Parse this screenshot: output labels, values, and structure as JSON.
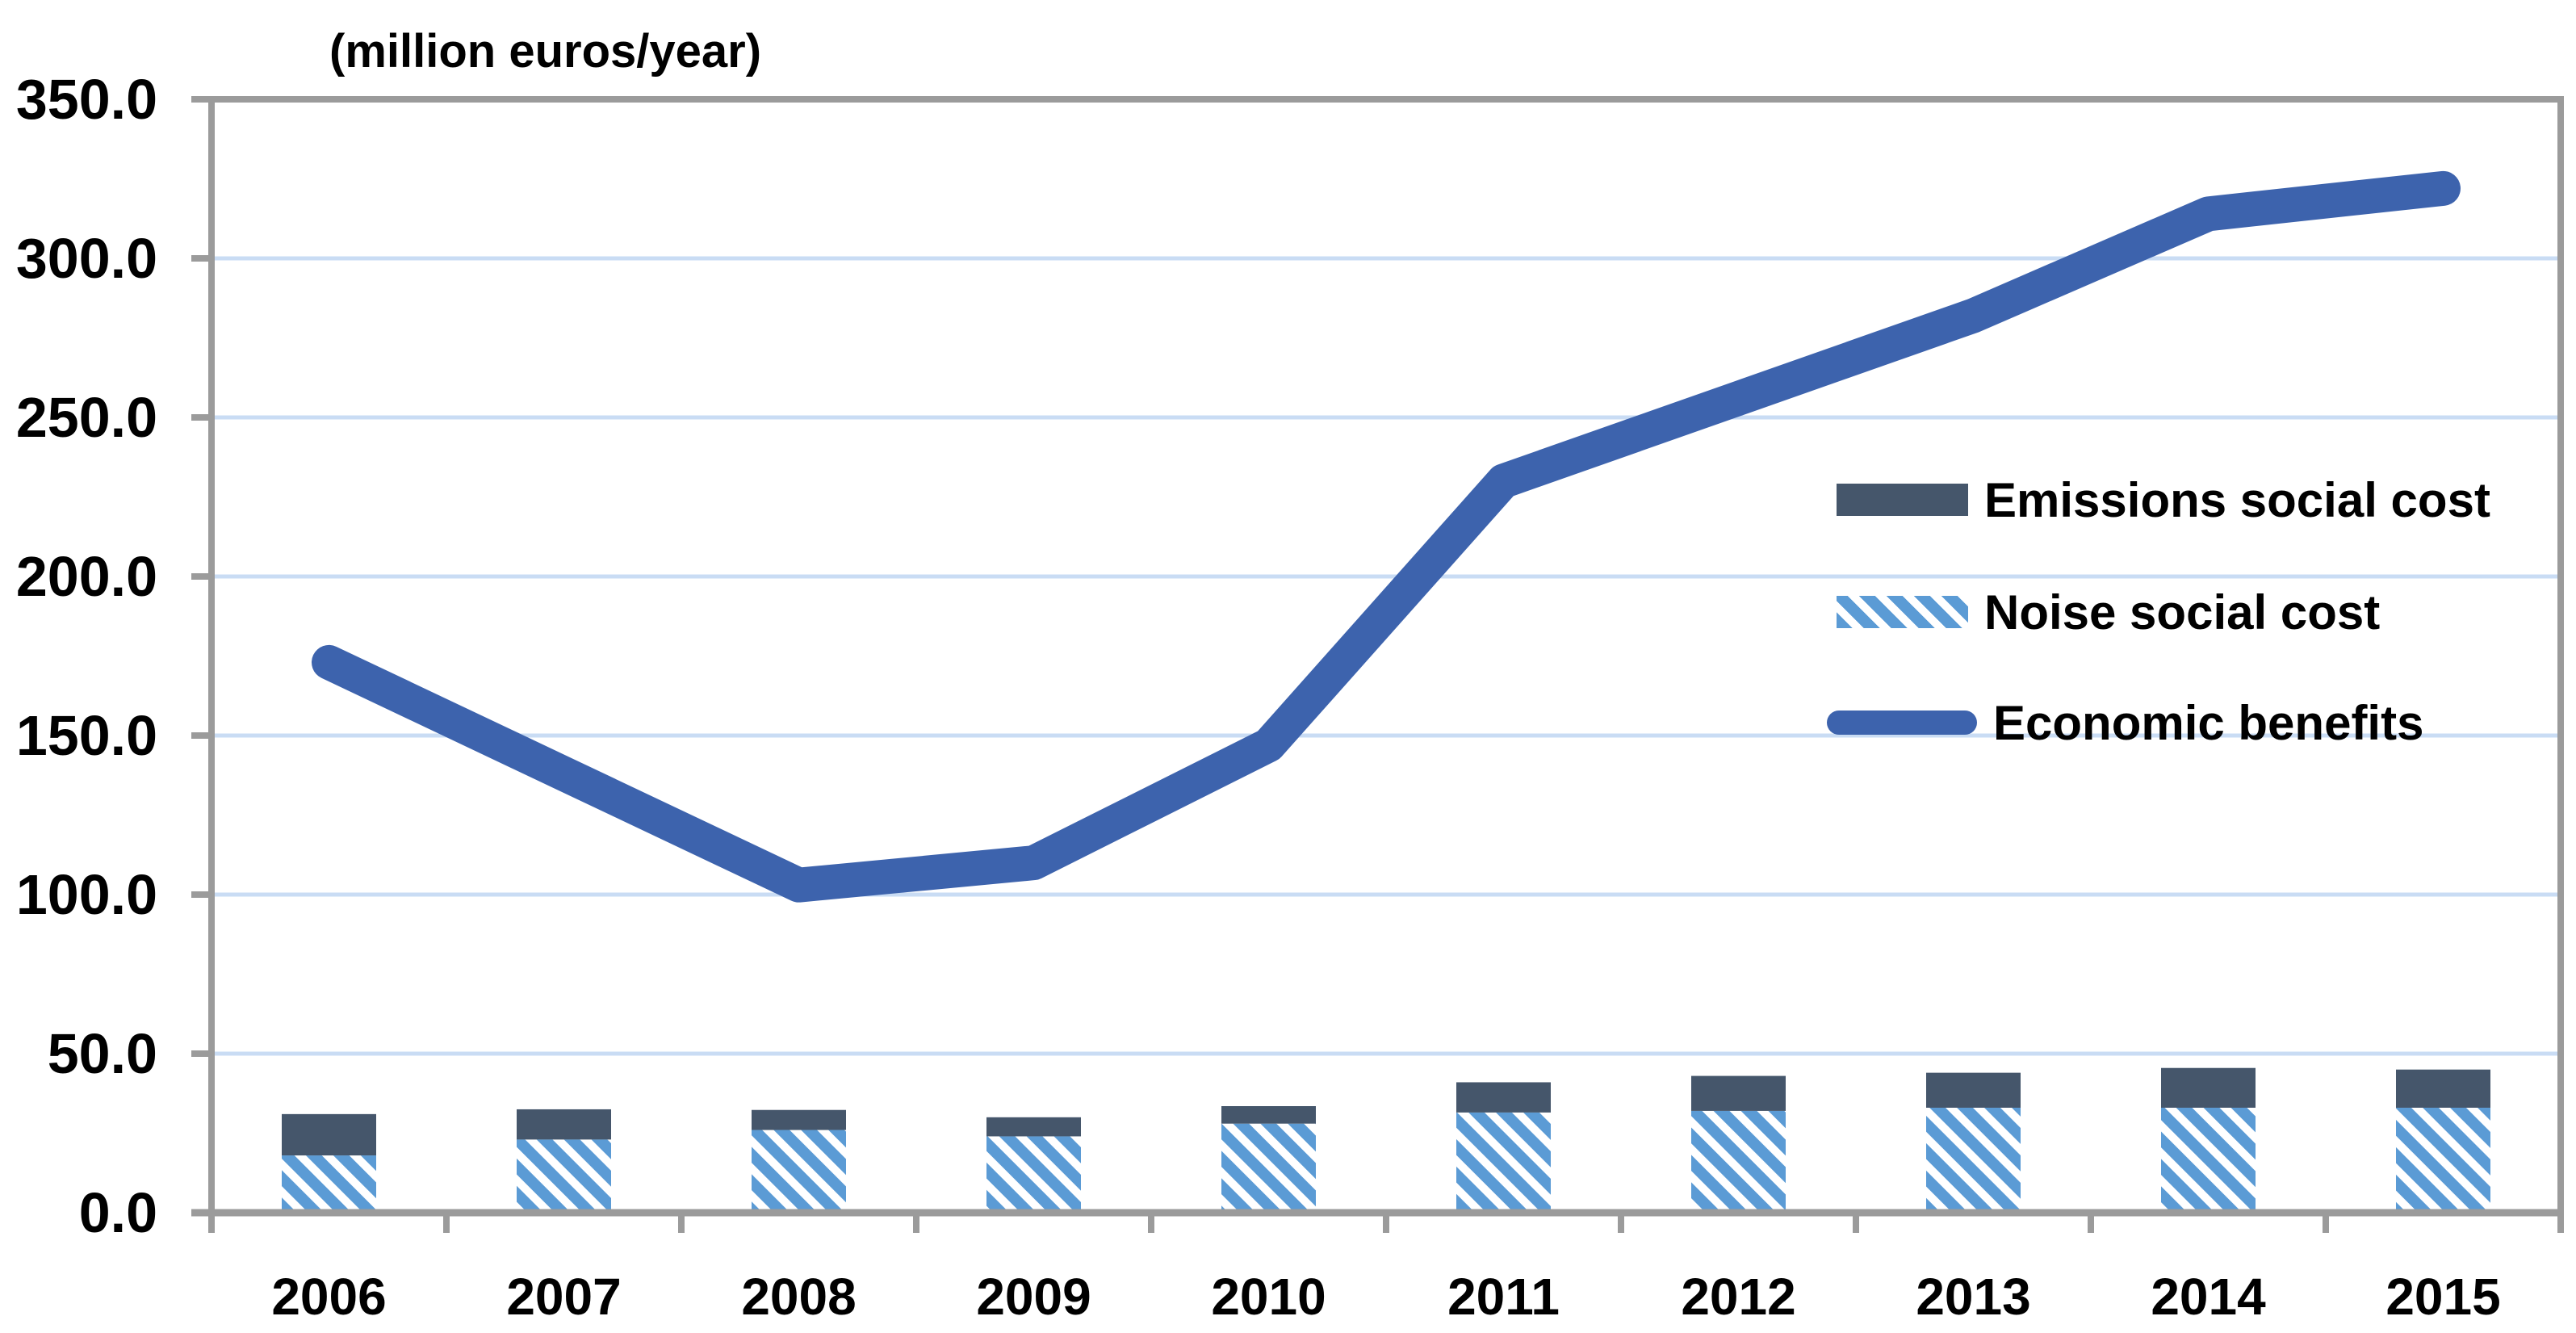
{
  "title": "(million euros/year)",
  "colors": {
    "line": "#3D63AD",
    "emissions": "#45566B",
    "noise": "#5B9BD5",
    "hatch_bg": "#FFFFFF",
    "gridline": "#C9DCF4",
    "axis": "#9B9B9B",
    "text": "#000000"
  },
  "legend": {
    "items": [
      {
        "label": "Emissions social cost",
        "swatch": "dark-rect"
      },
      {
        "label": "Noise social cost",
        "swatch": "hatched-rect"
      },
      {
        "label": "Economic benefits",
        "swatch": "thick-line"
      }
    ]
  },
  "chart_data": {
    "type": "combo",
    "title": "(million euros/year)",
    "xlabel": "",
    "ylabel": "",
    "categories": [
      "2006",
      "2007",
      "2008",
      "2009",
      "2010",
      "2011",
      "2012",
      "2013",
      "2014",
      "2015"
    ],
    "series": [
      {
        "name": "Noise social cost",
        "type": "bar",
        "stack_order": 0,
        "pattern": "diagonal-hatch",
        "values": [
          18,
          23,
          26,
          24,
          28,
          31.5,
          32,
          33,
          33,
          33
        ]
      },
      {
        "name": "Emissions social cost",
        "type": "bar",
        "stack_order": 1,
        "values": [
          13,
          9.5,
          6.3,
          6,
          5.5,
          9.5,
          11,
          11,
          12.5,
          12
        ]
      },
      {
        "name": "Economic benefits",
        "type": "line",
        "values": [
          173,
          138,
          103,
          110,
          147,
          230,
          256,
          282,
          314,
          322
        ]
      }
    ],
    "ylim": [
      0,
      350
    ],
    "ytick_step": 50,
    "ytick_labels": [
      "350.0",
      "300.0",
      "250.0",
      "200.0",
      "150.0",
      "100.0",
      "50.0",
      "0.0"
    ],
    "grid": "horizontal-only",
    "legend_position": "middle-right",
    "bars_stacked": true
  }
}
